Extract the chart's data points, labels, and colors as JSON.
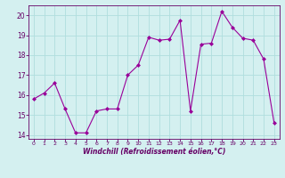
{
  "x": [
    0,
    1,
    2,
    3,
    4,
    5,
    6,
    7,
    8,
    9,
    10,
    11,
    12,
    13,
    14,
    15,
    16,
    17,
    18,
    19,
    20,
    21,
    22,
    23
  ],
  "y": [
    15.8,
    16.1,
    16.6,
    15.3,
    14.1,
    14.1,
    15.2,
    15.3,
    15.3,
    17.0,
    17.5,
    18.9,
    18.75,
    18.8,
    19.75,
    15.2,
    18.55,
    18.6,
    20.2,
    19.4,
    18.85,
    18.75,
    17.8,
    14.6
  ],
  "xlabel": "Windchill (Refroidissement éolien,°C)",
  "line_color": "#990099",
  "marker_color": "#990099",
  "bg_color": "#d4f0f0",
  "grid_color": "#b0dede",
  "axis_color": "#660066",
  "tick_color": "#660066",
  "ylim": [
    13.8,
    20.5
  ],
  "xlim": [
    -0.5,
    23.5
  ],
  "yticks": [
    14,
    15,
    16,
    17,
    18,
    19,
    20
  ],
  "xticks": [
    0,
    1,
    2,
    3,
    4,
    5,
    6,
    7,
    8,
    9,
    10,
    11,
    12,
    13,
    14,
    15,
    16,
    17,
    18,
    19,
    20,
    21,
    22,
    23
  ],
  "figsize": [
    3.2,
    2.0
  ],
  "dpi": 100
}
